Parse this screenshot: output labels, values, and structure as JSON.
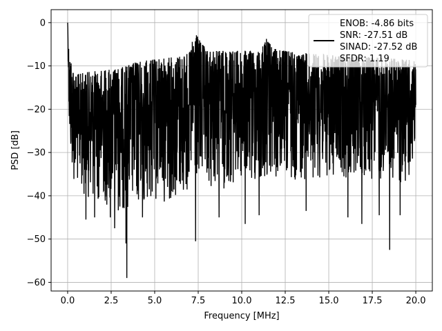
{
  "chart_data": {
    "type": "line",
    "xlabel": "Frequency [MHz]",
    "ylabel": "PSD [dB]",
    "xlim": [
      -0.95,
      20.95
    ],
    "ylim": [
      -62,
      3
    ],
    "x_ticks": [
      0.0,
      2.5,
      5.0,
      7.5,
      10.0,
      12.5,
      15.0,
      17.5,
      20.0
    ],
    "x_tick_labels": [
      "0.0",
      "2.5",
      "5.0",
      "7.5",
      "10.0",
      "12.5",
      "15.0",
      "17.5",
      "20.0"
    ],
    "y_ticks": [
      0,
      -10,
      -20,
      -30,
      -40,
      -50,
      -60
    ],
    "y_tick_labels": [
      "0",
      "−10",
      "−20",
      "−30",
      "−40",
      "−50",
      "−60"
    ],
    "grid": true,
    "legend_placement": "top-right",
    "legend_entries": [
      "ENOB: -4.86 bits",
      "SNR: -27.51 dB",
      "SINAD: -27.52 dB",
      "SFDR: 1.19"
    ],
    "series_color": "#000000",
    "series": [
      {
        "x_range": [
          0.0,
          20.0
        ],
        "start_value": 0,
        "upper_envelope": [
          [
            0.0,
            0
          ],
          [
            0.05,
            -5
          ],
          [
            0.15,
            -8
          ],
          [
            0.3,
            -10
          ],
          [
            0.5,
            -12
          ],
          [
            1.0,
            -11.5
          ],
          [
            2.0,
            -11
          ],
          [
            3.0,
            -10.5
          ],
          [
            4.0,
            -9
          ],
          [
            5.0,
            -8.5
          ],
          [
            6.0,
            -8
          ],
          [
            7.0,
            -7
          ],
          [
            7.3,
            -2
          ],
          [
            7.5,
            -3.5
          ],
          [
            8.0,
            -6.5
          ],
          [
            9.0,
            -6.5
          ],
          [
            10.0,
            -6.5
          ],
          [
            11.0,
            -6.5
          ],
          [
            11.4,
            -3.5
          ],
          [
            11.8,
            -6
          ],
          [
            12.5,
            -6.5
          ],
          [
            13.5,
            -7
          ],
          [
            15.0,
            -7.5
          ],
          [
            17.5,
            -8
          ],
          [
            19.5,
            -8.5
          ],
          [
            20.0,
            -9
          ]
        ],
        "lower_envelope": [
          [
            0.0,
            0
          ],
          [
            0.1,
            -30
          ],
          [
            0.3,
            -37
          ],
          [
            1.0,
            -40
          ],
          [
            2.0,
            -42
          ],
          [
            3.0,
            -44
          ],
          [
            4.0,
            -43
          ],
          [
            5.0,
            -42
          ],
          [
            6.0,
            -41
          ],
          [
            7.0,
            -40
          ],
          [
            8.0,
            -39
          ],
          [
            10.0,
            -38
          ],
          [
            12.0,
            -37
          ],
          [
            14.0,
            -36
          ],
          [
            16.0,
            -36
          ],
          [
            18.0,
            -37
          ],
          [
            20.0,
            -37
          ]
        ],
        "deep_nulls": [
          [
            1.05,
            -45.5
          ],
          [
            1.55,
            -45
          ],
          [
            2.45,
            -45
          ],
          [
            2.7,
            -47.5
          ],
          [
            3.35,
            -51
          ],
          [
            3.4,
            -59
          ],
          [
            4.3,
            -45
          ],
          [
            7.35,
            -50.5
          ],
          [
            8.7,
            -45
          ],
          [
            10.2,
            -46.5
          ],
          [
            11.0,
            -44.5
          ],
          [
            13.7,
            -43.5
          ],
          [
            16.1,
            -45
          ],
          [
            16.9,
            -46.5
          ],
          [
            17.9,
            -44.5
          ],
          [
            18.5,
            -52.5
          ],
          [
            19.1,
            -44.5
          ]
        ]
      }
    ]
  }
}
